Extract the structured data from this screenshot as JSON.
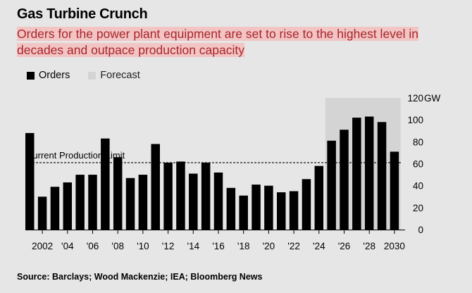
{
  "header": {
    "title": "Gas Turbine Crunch",
    "subtitle": "Orders for the power plant equipment are set to rise to the highest level in decades and outpace production capacity"
  },
  "legend": {
    "orders_label": "Orders",
    "forecast_label": "Forecast",
    "orders_color": "#000000",
    "forecast_color": "#d4d4d4"
  },
  "annotation": {
    "label": "Current Production Limit",
    "value": 61
  },
  "footer": {
    "source": "Source: Barclays; Wood Mackenzie; IEA; Bloomberg News"
  },
  "chart_data": {
    "type": "bar",
    "title": "Gas Turbine Crunch",
    "unit": "GW",
    "x": [
      2001,
      2002,
      2003,
      2004,
      2005,
      2006,
      2007,
      2008,
      2009,
      2010,
      2011,
      2012,
      2013,
      2014,
      2015,
      2016,
      2017,
      2018,
      2019,
      2020,
      2021,
      2022,
      2023,
      2024,
      2025,
      2026,
      2027,
      2028,
      2029,
      2030
    ],
    "series": [
      {
        "name": "Orders",
        "values": [
          88,
          30,
          39,
          43,
          50,
          50,
          83,
          66,
          47,
          50,
          78,
          61,
          62,
          51,
          61,
          52,
          38,
          31,
          41,
          40,
          34,
          35,
          46,
          58,
          81,
          91,
          102,
          103,
          98,
          71
        ]
      }
    ],
    "forecast_range": [
      2025,
      2030
    ],
    "x_tick_labels": [
      "2002",
      "'04",
      "'06",
      "'08",
      "'10",
      "'12",
      "'14",
      "'16",
      "'18",
      "'20",
      "'22",
      "'24",
      "'26",
      "'28",
      "2030"
    ],
    "y_ticks": [
      0,
      20,
      40,
      60,
      80,
      100,
      120
    ],
    "y_tick_labels": [
      "0",
      "20",
      "40",
      "60",
      "80",
      "100",
      "120"
    ],
    "y_unit_label": "GW",
    "ylim": [
      0,
      120
    ],
    "grid": false,
    "legend_position": "top-left"
  }
}
